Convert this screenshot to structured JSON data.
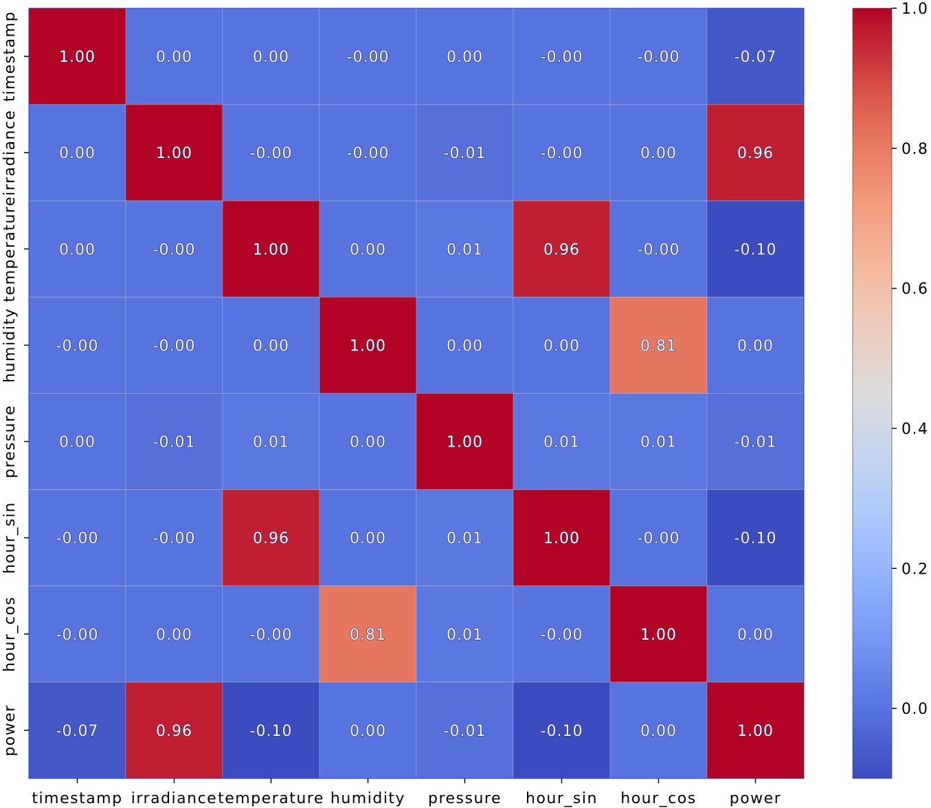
{
  "chart_data": {
    "type": "heatmap",
    "title": "",
    "xlabel": "",
    "ylabel": "",
    "colormap": "coolwarm",
    "vmin": -0.1,
    "vmax": 1.0,
    "x_labels": [
      "timestamp",
      "irradiance",
      "temperature",
      "humidity",
      "pressure",
      "hour_sin",
      "hour_cos",
      "power"
    ],
    "y_labels": [
      "timestamp",
      "irradiance",
      "temperature",
      "humidity",
      "pressure",
      "hour_sin",
      "hour_cos",
      "power"
    ],
    "values": [
      [
        1.0,
        0.0,
        0.0,
        -0.0,
        0.0,
        -0.0,
        -0.0,
        -0.07
      ],
      [
        0.0,
        1.0,
        -0.0,
        -0.0,
        -0.01,
        -0.0,
        0.0,
        0.96
      ],
      [
        0.0,
        -0.0,
        1.0,
        0.0,
        0.01,
        0.96,
        -0.0,
        -0.1
      ],
      [
        -0.0,
        -0.0,
        0.0,
        1.0,
        0.0,
        0.0,
        0.81,
        0.0
      ],
      [
        0.0,
        -0.01,
        0.01,
        0.0,
        1.0,
        0.01,
        0.01,
        -0.01
      ],
      [
        -0.0,
        -0.0,
        0.96,
        0.0,
        0.01,
        1.0,
        -0.0,
        -0.1
      ],
      [
        -0.0,
        0.0,
        -0.0,
        0.81,
        0.01,
        -0.0,
        1.0,
        0.0
      ],
      [
        -0.07,
        0.96,
        -0.1,
        0.0,
        -0.01,
        -0.1,
        0.0,
        1.0
      ]
    ],
    "annotations": [
      [
        "1.00",
        "0.00",
        "0.00",
        "-0.00",
        "0.00",
        "-0.00",
        "-0.00",
        "-0.07"
      ],
      [
        "0.00",
        "1.00",
        "-0.00",
        "-0.00",
        "-0.01",
        "-0.00",
        "0.00",
        "0.96"
      ],
      [
        "0.00",
        "-0.00",
        "1.00",
        "0.00",
        "0.01",
        "0.96",
        "-0.00",
        "-0.10"
      ],
      [
        "-0.00",
        "-0.00",
        "0.00",
        "1.00",
        "0.00",
        "0.00",
        "0.81",
        "0.00"
      ],
      [
        "0.00",
        "-0.01",
        "0.01",
        "0.00",
        "1.00",
        "0.01",
        "0.01",
        "-0.01"
      ],
      [
        "-0.00",
        "-0.00",
        "0.96",
        "0.00",
        "0.01",
        "1.00",
        "-0.00",
        "-0.10"
      ],
      [
        "-0.00",
        "0.00",
        "-0.00",
        "0.81",
        "0.01",
        "-0.00",
        "1.00",
        "0.00"
      ],
      [
        "-0.07",
        "0.96",
        "-0.10",
        "0.00",
        "-0.01",
        "-0.10",
        "0.00",
        "1.00"
      ]
    ],
    "colorbar": {
      "ticks": [
        0.0,
        0.2,
        0.4,
        0.6,
        0.8,
        1.0
      ],
      "tick_labels": [
        "0.0",
        "0.2",
        "0.4",
        "0.6",
        "0.8",
        "1.0"
      ]
    }
  }
}
